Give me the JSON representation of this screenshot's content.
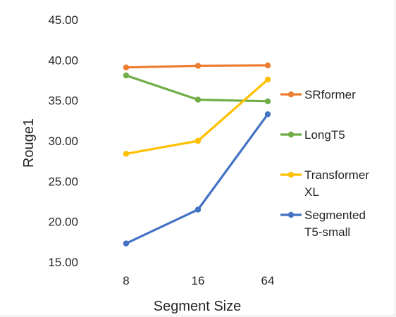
{
  "chart_data": {
    "type": "line",
    "categories": [
      "8",
      "16",
      "64"
    ],
    "xlabel": "Segment Size",
    "ylabel": "Rouge1",
    "ylim": [
      15,
      45
    ],
    "yticks": [
      "15.00",
      "20.00",
      "25.00",
      "30.00",
      "35.00",
      "40.00",
      "45.00"
    ],
    "grid": false,
    "legend_position": "right",
    "series": [
      {
        "name": "SRformer",
        "legend_lines": [
          "SRformer"
        ],
        "color": "#ed7d31",
        "values": [
          39.1,
          39.3,
          39.35
        ]
      },
      {
        "name": "LongT5",
        "legend_lines": [
          "LongT5"
        ],
        "color": "#70ad47",
        "values": [
          38.1,
          35.1,
          34.9
        ]
      },
      {
        "name": "Transformer XL",
        "legend_lines": [
          "Transformer",
          "XL"
        ],
        "color": "#ffc000",
        "values": [
          28.4,
          30.0,
          37.6
        ]
      },
      {
        "name": "Segmented T5-small",
        "legend_lines": [
          "Segmented",
          "T5-small"
        ],
        "color": "#4472c4",
        "values": [
          17.3,
          21.5,
          33.3
        ]
      }
    ]
  }
}
